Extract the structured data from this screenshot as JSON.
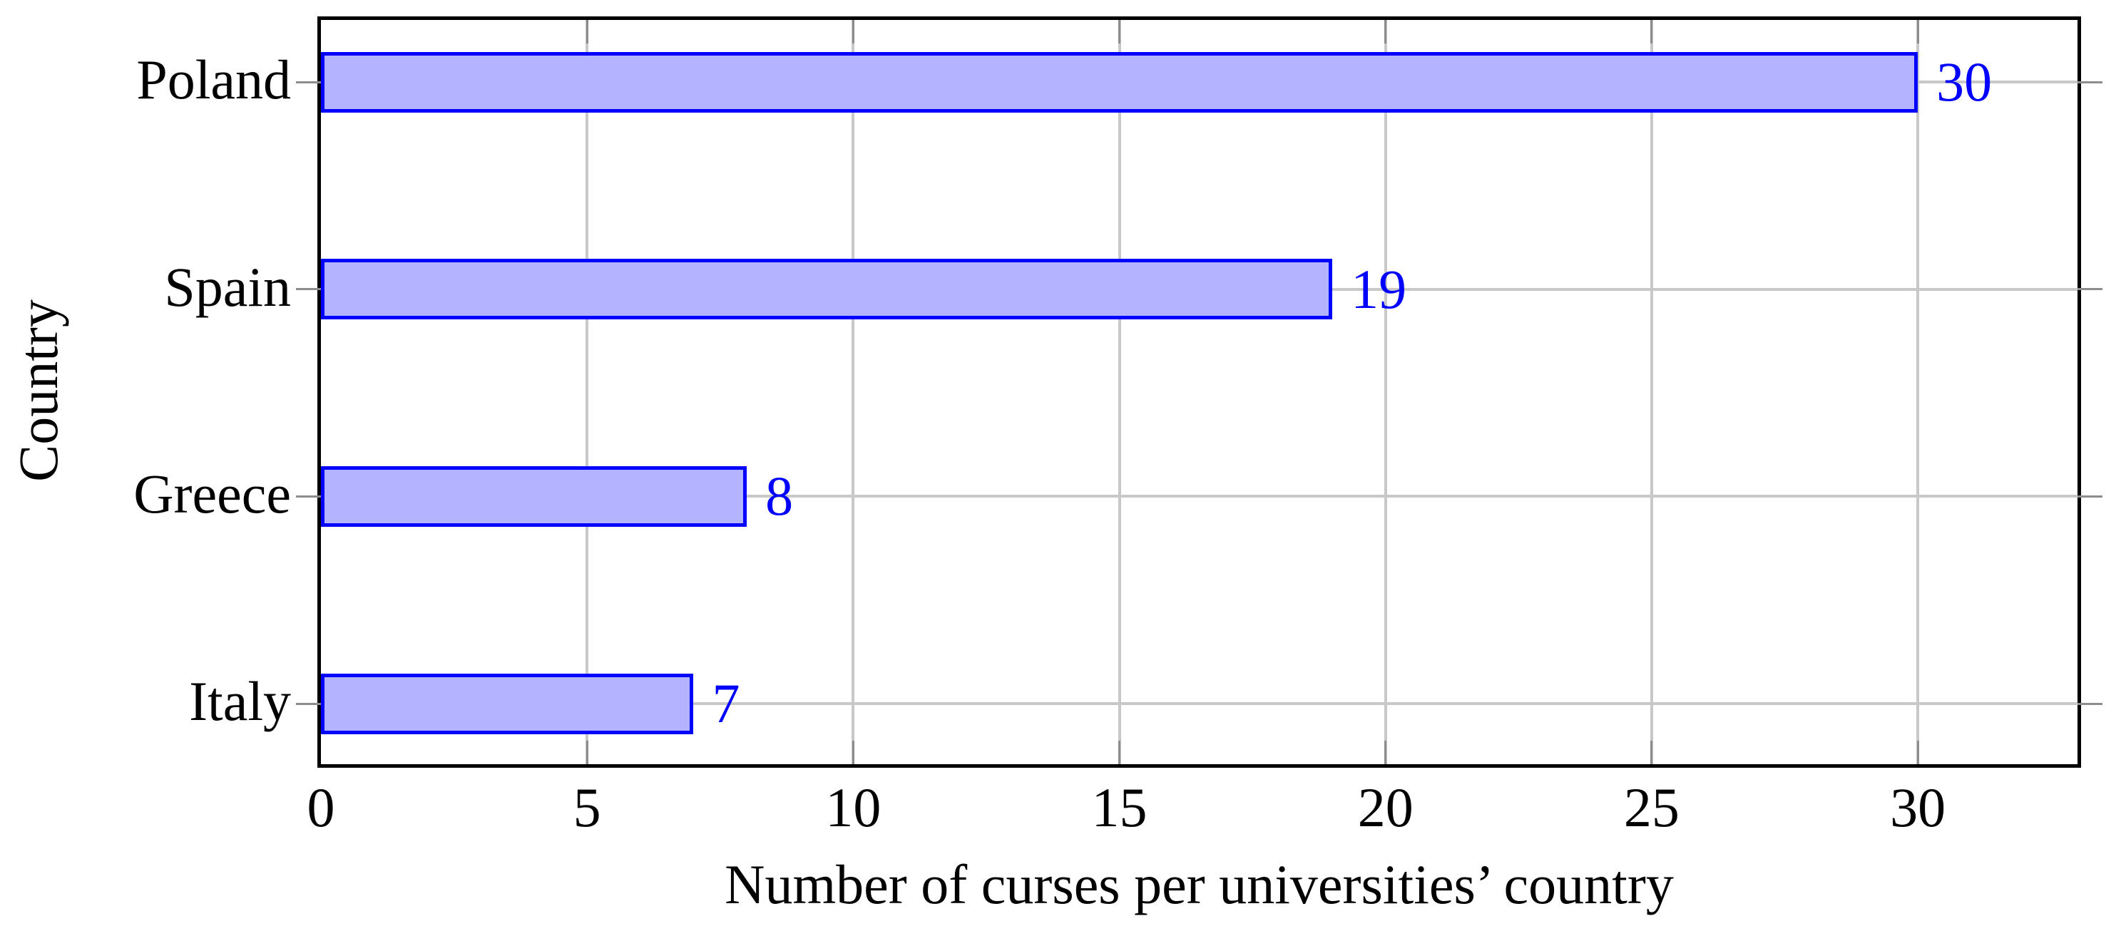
{
  "chart_data": {
    "type": "bar",
    "orientation": "horizontal",
    "categories": [
      "Poland",
      "Spain",
      "Greece",
      "Italy"
    ],
    "values": [
      30,
      19,
      8,
      7
    ],
    "bar_value_labels": [
      "30",
      "19",
      "8",
      "7"
    ],
    "title": "",
    "xlabel": "Number of curses per universities’ country",
    "ylabel": "Country",
    "xticks": [
      0,
      5,
      10,
      15,
      20,
      25,
      30
    ],
    "xtick_labels": [
      "0",
      "5",
      "10",
      "15",
      "20",
      "25",
      "30"
    ],
    "xlim": [
      0,
      33
    ],
    "grid": true,
    "legend_position": "none"
  },
  "colors": {
    "background": "#ffffff",
    "axis_border": "#000000",
    "gridline": "#c8c8c8",
    "tick": "#8c8c8c",
    "bar_fill": "#b3b3ff",
    "bar_border": "#0000ff",
    "value_label": "#0000ff",
    "text": "#000000"
  }
}
